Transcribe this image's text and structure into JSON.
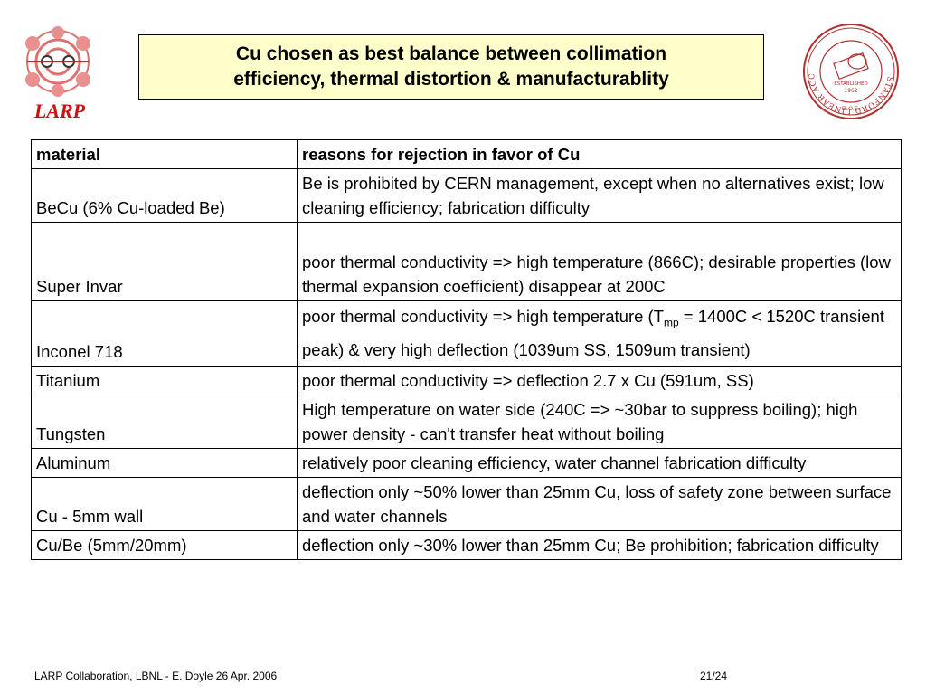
{
  "logo": {
    "text": "LARP"
  },
  "title": {
    "line1": "Cu chosen as best balance between collimation",
    "line2": "efficiency, thermal distortion & manufacturablity"
  },
  "seal": {
    "ring_text": "STANFORD LINEAR ACCELERATOR CENTER",
    "established": "ESTABLISHED",
    "year": "1962",
    "doe": "D.O.E."
  },
  "table": {
    "headers": [
      "material",
      "reasons for rejection in favor of Cu"
    ],
    "rows": [
      {
        "material": "BeCu (6% Cu-loaded Be)",
        "reason": "Be is prohibited by CERN management, except when no alternatives exist; low cleaning efficiency; fabrication difficulty"
      },
      {
        "material": "Super Invar",
        "reason": "poor thermal conductivity => high temperature (866C);  desirable properties (low thermal expansion coefficient) disappear at 200C"
      },
      {
        "material": "Inconel 718",
        "reason_pre": "poor thermal conductivity => high temperature (T",
        "reason_sub": "mp",
        "reason_post": " = 1400C < 1520C transient peak) & very high deflection (1039um SS, 1509um transient)"
      },
      {
        "material": "Titanium",
        "reason": "poor thermal conductivity => deflection 2.7 x Cu  (591um, SS)"
      },
      {
        "material": "Tungsten",
        "reason": "High temperature on water side (240C => ~30bar to suppress boiling); high power density - can't transfer heat without boiling"
      },
      {
        "material": "Aluminum",
        "reason": "relatively poor cleaning efficiency, water channel fabrication difficulty"
      },
      {
        "material": "Cu - 5mm wall",
        "reason": "deflection only ~50% lower than 25mm Cu, loss of safety zone between surface and water channels"
      },
      {
        "material": "Cu/Be (5mm/20mm)",
        "reason": "deflection only ~30% lower than 25mm Cu; Be prohibition; fabrication difficulty"
      }
    ]
  },
  "footer": {
    "left": "LARP Collaboration, LBNL  -  E. Doyle 26 Apr. 2006",
    "page": "21/24"
  }
}
